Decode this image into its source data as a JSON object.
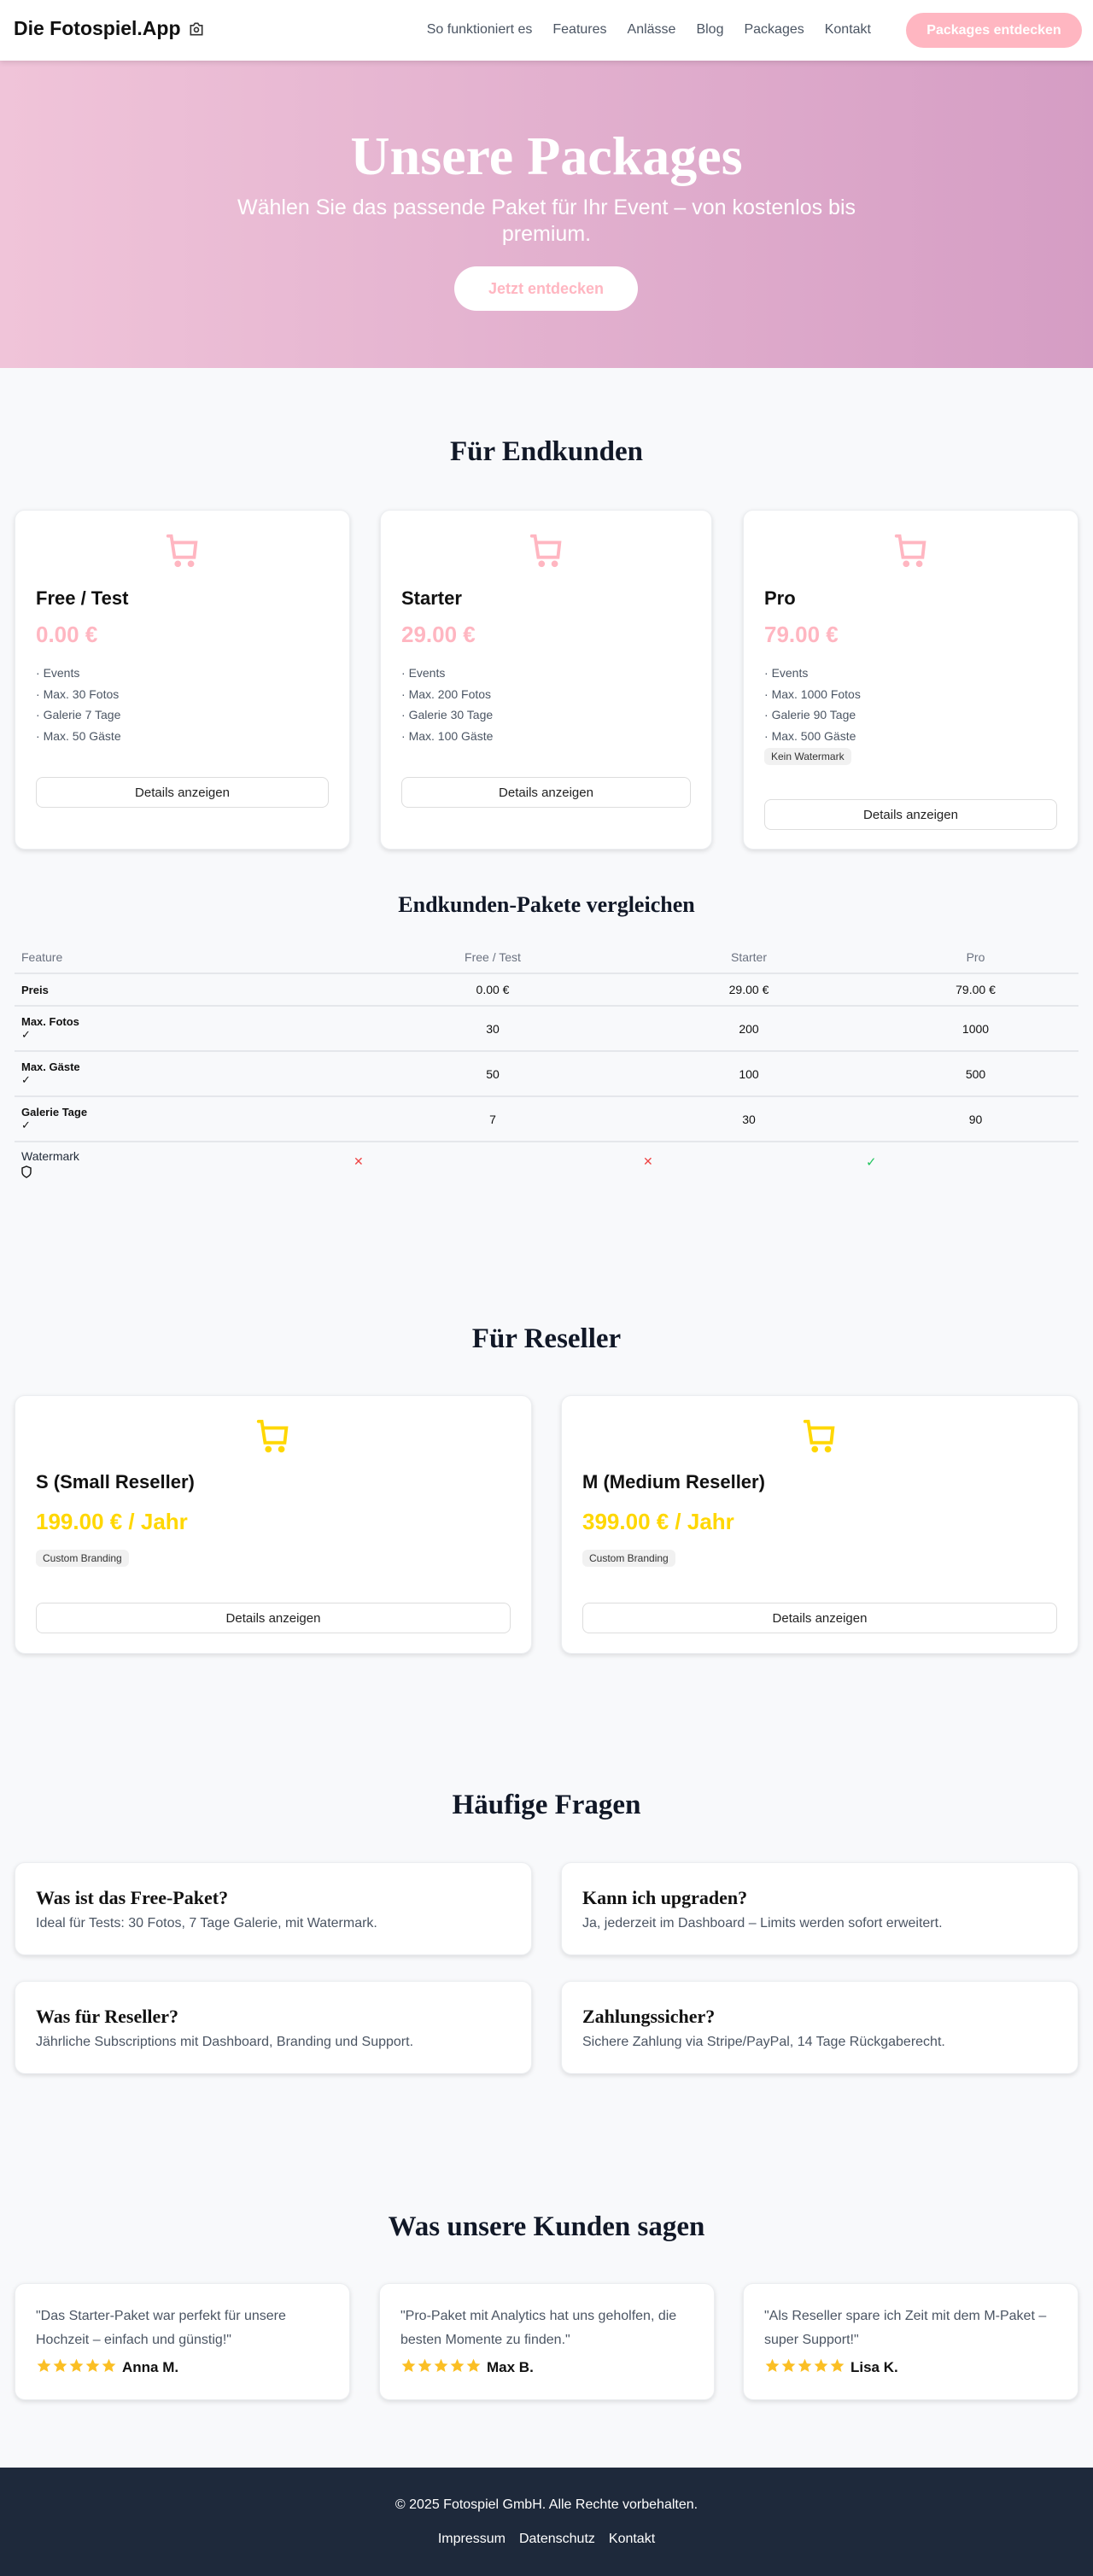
{
  "header": {
    "logo": "Die Fotospiel.App",
    "nav": [
      "So funktioniert es",
      "Features",
      "Anlässe",
      "Blog",
      "Packages",
      "Kontakt"
    ],
    "cta": "Packages entdecken"
  },
  "hero": {
    "title": "Unsere Packages",
    "subtitle": "Wählen Sie das passende Paket für Ihr Event – von kostenlos bis premium.",
    "cta": "Jetzt entdecken"
  },
  "colors": {
    "accent": "#ffb6c1",
    "reseller": "#ffd700",
    "footer": "#1e293b"
  },
  "endkunden": {
    "title": "Für Endkunden",
    "packages": [
      {
        "name": "Free / Test",
        "price": "0.00 €",
        "features": [
          "Events",
          "Max. 30 Fotos",
          "Galerie 7 Tage",
          "Max. 50 Gäste"
        ],
        "badge": null,
        "button": "Details anzeigen",
        "icon": "cart-icon"
      },
      {
        "name": "Starter",
        "price": "29.00 €",
        "features": [
          "Events",
          "Max. 200 Fotos",
          "Galerie 30 Tage",
          "Max. 100 Gäste"
        ],
        "badge": null,
        "button": "Details anzeigen",
        "icon": "cart-icon"
      },
      {
        "name": "Pro",
        "price": "79.00 €",
        "features": [
          "Events",
          "Max. 1000 Fotos",
          "Galerie 90 Tage",
          "Max. 500 Gäste"
        ],
        "badge": "Kein Watermark",
        "button": "Details anzeigen",
        "icon": "cart-icon"
      }
    ]
  },
  "compare": {
    "title": "Endkunden-Pakete vergleichen",
    "headers": [
      "Feature",
      "Free / Test",
      "Starter",
      "Pro"
    ],
    "rows": [
      {
        "label": "Preis",
        "values": [
          "0.00 €",
          "29.00 €",
          "79.00 €"
        ]
      },
      {
        "label": "Max. Fotos",
        "icon": "check-icon",
        "values": [
          "30",
          "200",
          "1000"
        ]
      },
      {
        "label": "Max. Gäste",
        "icon": "check-icon",
        "values": [
          "50",
          "100",
          "500"
        ]
      },
      {
        "label": "Galerie Tage",
        "icon": "check-icon",
        "values": [
          "7",
          "30",
          "90"
        ]
      }
    ],
    "watermark": {
      "label": "Watermark",
      "icon": "shield-icon",
      "values": [
        "✕",
        "✕",
        "✓"
      ]
    }
  },
  "reseller": {
    "title": "Für Reseller",
    "packages": [
      {
        "name": "S (Small Reseller)",
        "price": "199.00 € / Jahr",
        "badge": "Custom Branding",
        "button": "Details anzeigen"
      },
      {
        "name": "M (Medium Reseller)",
        "price": "399.00 € / Jahr",
        "badge": "Custom Branding",
        "button": "Details anzeigen"
      }
    ]
  },
  "faq": {
    "title": "Häufige Fragen",
    "items": [
      {
        "q": "Was ist das Free-Paket?",
        "a": "Ideal für Tests: 30 Fotos, 7 Tage Galerie, mit Watermark."
      },
      {
        "q": "Kann ich upgraden?",
        "a": "Ja, jederzeit im Dashboard – Limits werden sofort erweitert."
      },
      {
        "q": "Was für Reseller?",
        "a": "Jährliche Subscriptions mit Dashboard, Branding und Support."
      },
      {
        "q": "Zahlungssicher?",
        "a": "Sichere Zahlung via Stripe/PayPal, 14 Tage Rückgaberecht."
      }
    ]
  },
  "testimonials": {
    "title": "Was unsere Kunden sagen",
    "items": [
      {
        "text": "\"Das Starter-Paket war perfekt für unsere Hochzeit – einfach und günstig!\"",
        "name": "Anna M.",
        "stars": 5
      },
      {
        "text": "\"Pro-Paket mit Analytics hat uns geholfen, die besten Momente zu finden.\"",
        "name": "Max B.",
        "stars": 5
      },
      {
        "text": "\"Als Reseller spare ich Zeit mit dem M-Paket – super Support!\"",
        "name": "Lisa K.",
        "stars": 5
      }
    ]
  },
  "footer": {
    "copyright": "© 2025 Fotospiel GmbH. Alle Rechte vorbehalten.",
    "links": [
      "Impressum",
      "Datenschutz",
      "Kontakt"
    ]
  }
}
